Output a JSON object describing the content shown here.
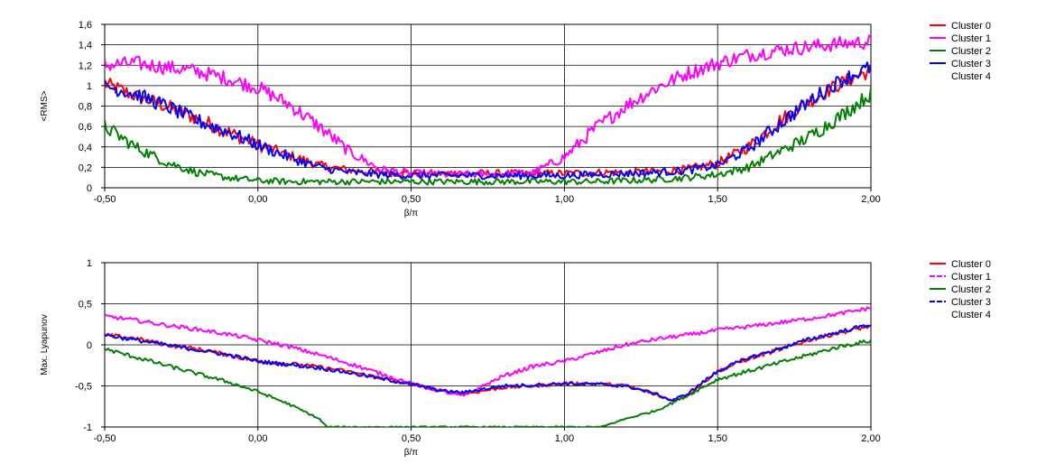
{
  "chart_data": [
    {
      "type": "line",
      "xlabel": "β/π",
      "ylabel": "<RMS>",
      "xlim": [
        -0.5,
        2.0
      ],
      "ylim": [
        0,
        1.6
      ],
      "xticks": [
        "-0,50",
        "0,00",
        "0,50",
        "1,00",
        "1,50",
        "2,00"
      ],
      "yticks": [
        "0",
        "0,2",
        "0,4",
        "0,6",
        "0,8",
        "1",
        "1,2",
        "1,4",
        "1,6"
      ],
      "grid": true,
      "legend_position": "top-right",
      "series": [
        {
          "name": "Cluster 0",
          "color": "#ff0000",
          "style": "solid",
          "x": [
            -0.5,
            -0.4,
            -0.3,
            -0.2,
            -0.1,
            0.0,
            0.1,
            0.2,
            0.3,
            0.4,
            0.5,
            0.6,
            0.7,
            0.8,
            0.9,
            1.0,
            1.1,
            1.2,
            1.3,
            1.4,
            1.5,
            1.6,
            1.7,
            1.8,
            1.9,
            2.0
          ],
          "y": [
            1.02,
            0.9,
            0.8,
            0.68,
            0.55,
            0.42,
            0.32,
            0.22,
            0.17,
            0.15,
            0.14,
            0.14,
            0.14,
            0.14,
            0.14,
            0.14,
            0.15,
            0.15,
            0.16,
            0.18,
            0.24,
            0.4,
            0.65,
            0.85,
            1.02,
            1.15
          ]
        },
        {
          "name": "Cluster 1",
          "color": "#ff00ff",
          "style": "solid",
          "x": [
            -0.5,
            -0.4,
            -0.3,
            -0.2,
            -0.1,
            0.0,
            0.1,
            0.2,
            0.3,
            0.4,
            0.5,
            0.6,
            0.7,
            0.8,
            0.9,
            1.0,
            1.1,
            1.2,
            1.3,
            1.4,
            1.5,
            1.6,
            1.7,
            1.8,
            1.9,
            2.0
          ],
          "y": [
            1.2,
            1.22,
            1.18,
            1.14,
            1.07,
            0.98,
            0.82,
            0.6,
            0.35,
            0.18,
            0.14,
            0.13,
            0.13,
            0.13,
            0.15,
            0.3,
            0.58,
            0.8,
            0.98,
            1.12,
            1.22,
            1.3,
            1.35,
            1.38,
            1.41,
            1.43
          ]
        },
        {
          "name": "Cluster 2",
          "color": "#008000",
          "style": "solid",
          "x": [
            -0.5,
            -0.4,
            -0.3,
            -0.2,
            -0.1,
            0.0,
            0.1,
            0.2,
            0.3,
            0.4,
            0.5,
            0.6,
            0.7,
            0.8,
            0.9,
            1.0,
            1.1,
            1.2,
            1.3,
            1.4,
            1.5,
            1.6,
            1.7,
            1.8,
            1.9,
            2.0
          ],
          "y": [
            0.6,
            0.4,
            0.25,
            0.15,
            0.1,
            0.07,
            0.06,
            0.06,
            0.06,
            0.06,
            0.06,
            0.06,
            0.06,
            0.06,
            0.06,
            0.06,
            0.06,
            0.07,
            0.08,
            0.1,
            0.13,
            0.2,
            0.35,
            0.5,
            0.7,
            0.92
          ]
        },
        {
          "name": "Cluster 3",
          "color": "#0000ff",
          "style": "solid",
          "x": [
            -0.5,
            -0.4,
            -0.3,
            -0.2,
            -0.1,
            0.0,
            0.1,
            0.2,
            0.3,
            0.4,
            0.5,
            0.6,
            0.7,
            0.8,
            0.9,
            1.0,
            1.1,
            1.2,
            1.3,
            1.4,
            1.5,
            1.6,
            1.7,
            1.8,
            1.9,
            2.0
          ],
          "y": [
            1.0,
            0.92,
            0.8,
            0.66,
            0.55,
            0.42,
            0.3,
            0.2,
            0.15,
            0.13,
            0.12,
            0.12,
            0.12,
            0.12,
            0.12,
            0.12,
            0.13,
            0.14,
            0.15,
            0.17,
            0.22,
            0.38,
            0.62,
            0.85,
            1.05,
            1.18
          ]
        },
        {
          "name": "Cluster 4",
          "color": "#ffffe0",
          "style": "solid",
          "x": [],
          "y": []
        }
      ]
    },
    {
      "type": "line",
      "xlabel": "β/π",
      "ylabel": "Max. Lyapunov",
      "xlim": [
        -0.5,
        2.0
      ],
      "ylim": [
        -1,
        1
      ],
      "xticks": [
        "-0,50",
        "0,00",
        "0,50",
        "1,00",
        "1,50",
        "2,00"
      ],
      "yticks": [
        "-1",
        "-0,5",
        "0",
        "0,5",
        "1"
      ],
      "grid": true,
      "legend_position": "top-right",
      "series": [
        {
          "name": "Cluster 0",
          "color": "#ff0000",
          "style": "solid",
          "x": [
            -0.5,
            -0.4,
            -0.3,
            -0.2,
            -0.1,
            0.0,
            0.1,
            0.2,
            0.3,
            0.4,
            0.5,
            0.6,
            0.67,
            0.8,
            0.9,
            1.0,
            1.1,
            1.2,
            1.3,
            1.35,
            1.4,
            1.5,
            1.6,
            1.7,
            1.8,
            1.9,
            2.0
          ],
          "y": [
            0.12,
            0.08,
            0.0,
            -0.05,
            -0.12,
            -0.2,
            -0.23,
            -0.27,
            -0.33,
            -0.4,
            -0.48,
            -0.56,
            -0.6,
            -0.52,
            -0.5,
            -0.47,
            -0.47,
            -0.5,
            -0.6,
            -0.68,
            -0.62,
            -0.32,
            -0.17,
            -0.06,
            0.06,
            0.15,
            0.23
          ]
        },
        {
          "name": "Cluster 1",
          "color": "#ff00ff",
          "style": "dashed",
          "x": [
            -0.5,
            -0.4,
            -0.3,
            -0.2,
            -0.1,
            0.0,
            0.1,
            0.2,
            0.3,
            0.4,
            0.5,
            0.6,
            0.67,
            0.8,
            0.9,
            1.0,
            1.1,
            1.2,
            1.3,
            1.4,
            1.5,
            1.6,
            1.7,
            1.8,
            1.9,
            2.0
          ],
          "y": [
            0.35,
            0.3,
            0.24,
            0.19,
            0.13,
            0.06,
            -0.02,
            -0.12,
            -0.23,
            -0.35,
            -0.47,
            -0.57,
            -0.62,
            -0.38,
            -0.26,
            -0.2,
            -0.1,
            0.0,
            0.07,
            0.12,
            0.18,
            0.22,
            0.27,
            0.32,
            0.38,
            0.45
          ]
        },
        {
          "name": "Cluster 2",
          "color": "#008000",
          "style": "solid",
          "x": [
            -0.5,
            -0.4,
            -0.3,
            -0.2,
            -0.1,
            0.0,
            0.1,
            0.2,
            0.225,
            1.12,
            1.2,
            1.3,
            1.4,
            1.5,
            1.6,
            1.7,
            1.8,
            1.9,
            2.0
          ],
          "y": [
            -0.05,
            -0.15,
            -0.25,
            -0.35,
            -0.45,
            -0.57,
            -0.72,
            -0.9,
            -1.0,
            -1.0,
            -0.9,
            -0.8,
            -0.62,
            -0.42,
            -0.32,
            -0.22,
            -0.12,
            -0.02,
            0.05
          ]
        },
        {
          "name": "Cluster 3",
          "color": "#0000ff",
          "style": "dashed",
          "x": [
            -0.5,
            -0.4,
            -0.3,
            -0.2,
            -0.1,
            0.0,
            0.1,
            0.2,
            0.3,
            0.4,
            0.5,
            0.6,
            0.67,
            0.8,
            0.9,
            1.0,
            1.1,
            1.2,
            1.3,
            1.35,
            1.4,
            1.5,
            1.6,
            1.7,
            1.8,
            1.9,
            2.0
          ],
          "y": [
            0.12,
            0.06,
            0.0,
            -0.06,
            -0.12,
            -0.2,
            -0.24,
            -0.28,
            -0.34,
            -0.41,
            -0.48,
            -0.56,
            -0.58,
            -0.5,
            -0.49,
            -0.47,
            -0.48,
            -0.5,
            -0.6,
            -0.68,
            -0.6,
            -0.32,
            -0.16,
            -0.05,
            0.07,
            0.16,
            0.25
          ]
        },
        {
          "name": "Cluster 4",
          "color": "#ffffe0",
          "style": "solid",
          "x": [],
          "y": []
        }
      ]
    }
  ]
}
